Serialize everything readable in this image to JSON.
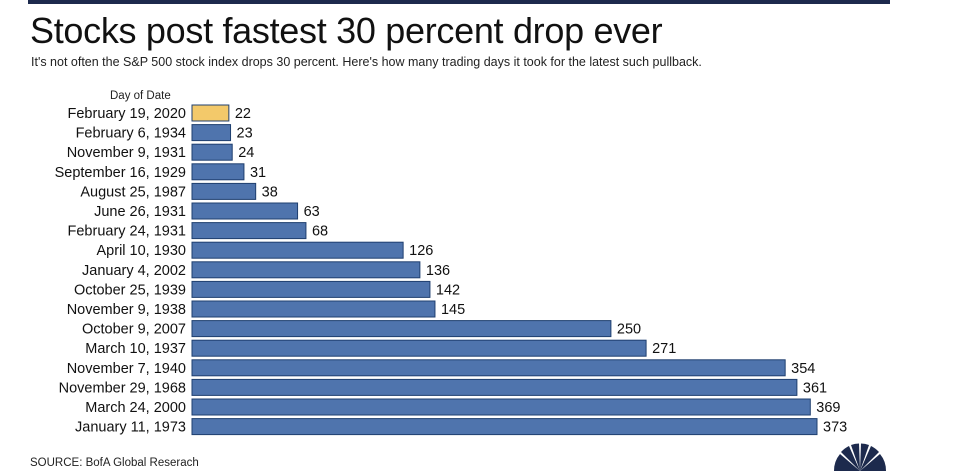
{
  "header": {
    "title": "Stocks post fastest 30 percent drop ever",
    "subtitle": "It's not often the S&P 500 stock index drops 30 percent. Here's how many trading days it took for the latest such pullback.",
    "column_header": "Day of Date"
  },
  "footer": {
    "source": "SOURCE: BofA Global Reserach"
  },
  "colors": {
    "highlight": "#f3c96a",
    "bar": "#4f74ad",
    "bar_edge": "#1f3f6f"
  },
  "logo": {
    "icon": "peacock-logo-icon"
  },
  "chart_data": {
    "type": "bar",
    "orientation": "horizontal",
    "title": "Stocks post fastest 30 percent drop ever",
    "subtitle": "It's not often the S&P 500 stock index drops 30 percent. Here's how many trading days it took for the latest such pullback.",
    "ylabel": "Day of Date",
    "xlabel": "",
    "grid": false,
    "xlim": [
      0,
      373
    ],
    "highlight_category": "February 19, 2020",
    "categories": [
      "February 19, 2020",
      "February 6, 1934",
      "November 9, 1931",
      "September 16, 1929",
      "August 25, 1987",
      "June 26, 1931",
      "February 24, 1931",
      "April 10, 1930",
      "January 4, 2002",
      "October 25, 1939",
      "November 9, 1938",
      "October 9, 2007",
      "March 10, 1937",
      "November 7, 1940",
      "November 29, 1968",
      "March 24, 2000",
      "January 11, 1973"
    ],
    "values": [
      22,
      23,
      24,
      31,
      38,
      63,
      68,
      126,
      136,
      142,
      145,
      250,
      271,
      354,
      361,
      369,
      373
    ]
  }
}
